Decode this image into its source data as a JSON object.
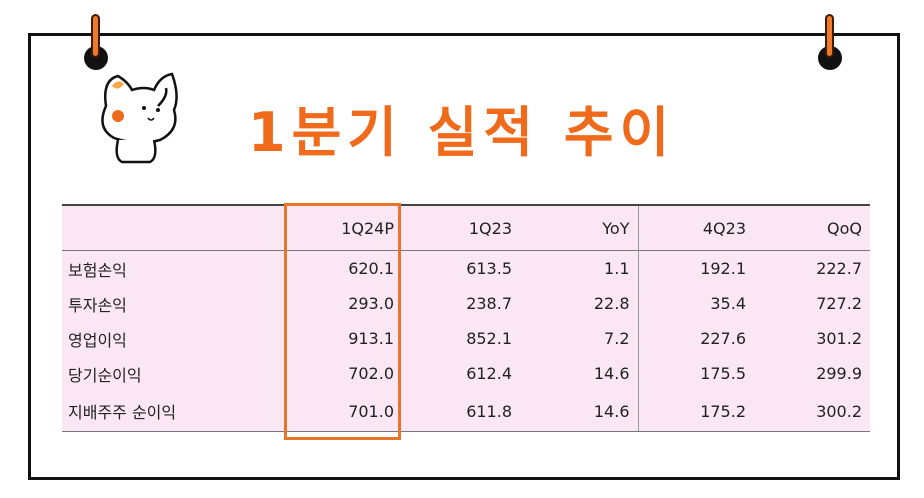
{
  "title": "1분기 실적 추이",
  "table": {
    "headers": [
      "",
      "1Q24P",
      "1Q23",
      "YoY",
      "4Q23",
      "QoQ"
    ],
    "rows": [
      {
        "label": "보험손익",
        "values": [
          "620.1",
          "613.5",
          "1.1",
          "192.1",
          "222.7"
        ]
      },
      {
        "label": "투자손익",
        "values": [
          "293.0",
          "238.7",
          "22.8",
          "35.4",
          "727.2"
        ]
      },
      {
        "label": "영업이익",
        "values": [
          "913.1",
          "852.1",
          "7.2",
          "227.6",
          "301.2"
        ]
      },
      {
        "label": "당기순이익",
        "values": [
          "702.0",
          "612.4",
          "14.6",
          "175.5",
          "299.9"
        ]
      },
      {
        "label": "지배주주 순이익",
        "values": [
          "701.0",
          "611.8",
          "14.6",
          "175.2",
          "300.2"
        ]
      }
    ]
  },
  "colors": {
    "accent": "#f06a1c",
    "table_bg": "#fbe6f4",
    "highlight": "#e8762a"
  }
}
